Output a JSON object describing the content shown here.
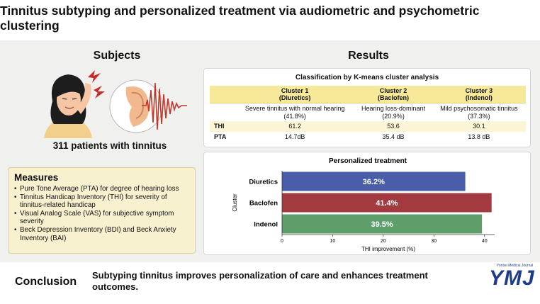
{
  "title": "Tinnitus subtyping and personalized treatment via audiometric and psychometric clustering",
  "subjects": {
    "heading": "Subjects",
    "patients": "311 patients with tinnitus"
  },
  "measures": {
    "title": "Measures",
    "items": [
      "Pure Tone Average (PTA) for degree of hearing loss",
      "Tinnitus Handicap Inventory (THI) for severity of tinnitus-related handicap",
      "Visual Analog Scale (VAS) for subjective symptom severity",
      "Beck Depression Inventory (BDI) and Beck Anxiety Inventory (BAI)"
    ]
  },
  "results": {
    "heading": "Results",
    "classification": {
      "title": "Classification by K-means cluster analysis",
      "clusters": [
        {
          "name": "Cluster 1",
          "drug": "(Diuretics)",
          "description": "Severe tinnitus with normal hearing",
          "percent": "(41.8%)",
          "thi": "61.2",
          "pta": "14.7dB"
        },
        {
          "name": "Cluster 2",
          "drug": "(Baclofen)",
          "description": "Hearing loss-dominant",
          "percent": "(20.9%)",
          "thi": "53.6",
          "pta": "35.4 dB"
        },
        {
          "name": "Cluster 3",
          "drug": "(Indenol)",
          "description": "Mild psychosomatic tinnitus",
          "percent": "(37.3%)",
          "thi": "30.1",
          "pta": "13.8 dB"
        }
      ],
      "row_labels": {
        "thi": "THI",
        "pta": "PTA"
      }
    }
  },
  "chart_data": {
    "type": "bar",
    "orientation": "horizontal",
    "title": "Personalized treatment",
    "categories": [
      "Diuretics",
      "Baclofen",
      "Indenol"
    ],
    "values": [
      36.2,
      41.4,
      39.5
    ],
    "value_labels": [
      "36.2%",
      "41.4%",
      "39.5%"
    ],
    "colors": [
      "#4a5ea8",
      "#a33a3f",
      "#5e9e6a"
    ],
    "xlabel": "THI improvement (%)",
    "ylabel": "Cluster",
    "xlim": [
      0,
      42
    ],
    "xticks": [
      0,
      10,
      20,
      30,
      40
    ],
    "grid": false
  },
  "conclusion": {
    "label": "Conclusion",
    "text": "Subtyping tinnitus improves personalization of care and enhances treatment outcomes."
  },
  "journal": {
    "name": "Yonsei Medical Journal",
    "logo": "YMJ"
  }
}
